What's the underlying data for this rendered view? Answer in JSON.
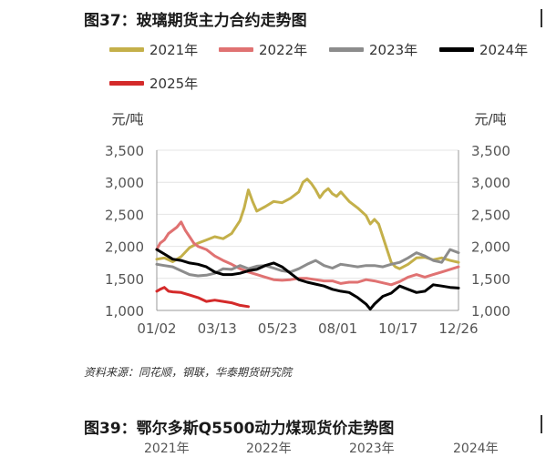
{
  "page": {
    "title": "图37：玻璃期货主力合约走势图",
    "source": "资料来源：同花顺，钢联，华泰期货研究院",
    "next_title": "图39：鄂尔多斯Q5500动力煤现货价走势图",
    "next_legend": [
      "2021年",
      "2022年",
      "2023年",
      "2024年"
    ]
  },
  "chart_data": {
    "type": "line",
    "title": "",
    "ylabel_left": "元/吨",
    "ylabel_right": "元/吨",
    "ylim": [
      1000,
      3500
    ],
    "yticks": [
      "1,000",
      "1,500",
      "2,000",
      "2,500",
      "3,000",
      "3,500"
    ],
    "xticks": [
      "01/02",
      "03/13",
      "05/23",
      "08/01",
      "10/17",
      "12/26"
    ],
    "x_day_range": [
      1,
      360
    ],
    "legend_position": "top",
    "series": [
      {
        "name": "2021年",
        "color": "#c4b04a",
        "points": [
          [
            1,
            1800
          ],
          [
            10,
            1820
          ],
          [
            20,
            1760
          ],
          [
            30,
            1840
          ],
          [
            40,
            1980
          ],
          [
            50,
            2050
          ],
          [
            60,
            2100
          ],
          [
            70,
            2150
          ],
          [
            80,
            2120
          ],
          [
            90,
            2200
          ],
          [
            100,
            2400
          ],
          [
            105,
            2600
          ],
          [
            110,
            2880
          ],
          [
            115,
            2700
          ],
          [
            120,
            2550
          ],
          [
            130,
            2620
          ],
          [
            140,
            2700
          ],
          [
            150,
            2680
          ],
          [
            160,
            2750
          ],
          [
            170,
            2850
          ],
          [
            175,
            3000
          ],
          [
            180,
            3050
          ],
          [
            185,
            2980
          ],
          [
            190,
            2880
          ],
          [
            195,
            2760
          ],
          [
            200,
            2850
          ],
          [
            205,
            2900
          ],
          [
            210,
            2820
          ],
          [
            215,
            2780
          ],
          [
            220,
            2850
          ],
          [
            230,
            2700
          ],
          [
            240,
            2600
          ],
          [
            250,
            2480
          ],
          [
            255,
            2350
          ],
          [
            260,
            2420
          ],
          [
            265,
            2350
          ],
          [
            270,
            2150
          ],
          [
            275,
            1950
          ],
          [
            280,
            1750
          ],
          [
            285,
            1680
          ],
          [
            290,
            1650
          ],
          [
            300,
            1720
          ],
          [
            310,
            1820
          ],
          [
            320,
            1830
          ],
          [
            330,
            1790
          ],
          [
            340,
            1820
          ],
          [
            350,
            1780
          ],
          [
            360,
            1750
          ]
        ]
      },
      {
        "name": "2022年",
        "color": "#e07272",
        "points": [
          [
            1,
            1950
          ],
          [
            5,
            2050
          ],
          [
            10,
            2100
          ],
          [
            15,
            2200
          ],
          [
            20,
            2250
          ],
          [
            25,
            2300
          ],
          [
            30,
            2380
          ],
          [
            35,
            2250
          ],
          [
            40,
            2150
          ],
          [
            45,
            2050
          ],
          [
            50,
            2000
          ],
          [
            60,
            1950
          ],
          [
            70,
            1850
          ],
          [
            80,
            1780
          ],
          [
            90,
            1720
          ],
          [
            100,
            1650
          ],
          [
            110,
            1600
          ],
          [
            120,
            1560
          ],
          [
            130,
            1520
          ],
          [
            140,
            1480
          ],
          [
            150,
            1470
          ],
          [
            160,
            1480
          ],
          [
            170,
            1500
          ],
          [
            180,
            1500
          ],
          [
            190,
            1480
          ],
          [
            200,
            1460
          ],
          [
            210,
            1460
          ],
          [
            220,
            1420
          ],
          [
            230,
            1440
          ],
          [
            240,
            1440
          ],
          [
            250,
            1480
          ],
          [
            260,
            1460
          ],
          [
            270,
            1430
          ],
          [
            280,
            1400
          ],
          [
            290,
            1450
          ],
          [
            300,
            1520
          ],
          [
            310,
            1560
          ],
          [
            320,
            1520
          ],
          [
            330,
            1560
          ],
          [
            340,
            1600
          ],
          [
            350,
            1640
          ],
          [
            360,
            1680
          ]
        ]
      },
      {
        "name": "2023年",
        "color": "#8c8c8c",
        "points": [
          [
            1,
            1720
          ],
          [
            10,
            1700
          ],
          [
            20,
            1680
          ],
          [
            30,
            1620
          ],
          [
            40,
            1560
          ],
          [
            50,
            1540
          ],
          [
            60,
            1550
          ],
          [
            70,
            1580
          ],
          [
            80,
            1650
          ],
          [
            90,
            1640
          ],
          [
            100,
            1700
          ],
          [
            110,
            1650
          ],
          [
            120,
            1690
          ],
          [
            130,
            1700
          ],
          [
            140,
            1660
          ],
          [
            150,
            1620
          ],
          [
            160,
            1600
          ],
          [
            170,
            1650
          ],
          [
            180,
            1720
          ],
          [
            190,
            1780
          ],
          [
            200,
            1700
          ],
          [
            210,
            1660
          ],
          [
            220,
            1720
          ],
          [
            230,
            1700
          ],
          [
            240,
            1680
          ],
          [
            250,
            1700
          ],
          [
            260,
            1700
          ],
          [
            270,
            1680
          ],
          [
            280,
            1720
          ],
          [
            290,
            1750
          ],
          [
            300,
            1820
          ],
          [
            310,
            1900
          ],
          [
            320,
            1850
          ],
          [
            330,
            1780
          ],
          [
            340,
            1750
          ],
          [
            350,
            1950
          ],
          [
            360,
            1900
          ]
        ]
      },
      {
        "name": "2024年",
        "color": "#000000",
        "points": [
          [
            1,
            1950
          ],
          [
            10,
            1880
          ],
          [
            20,
            1800
          ],
          [
            30,
            1780
          ],
          [
            40,
            1740
          ],
          [
            50,
            1720
          ],
          [
            60,
            1680
          ],
          [
            70,
            1600
          ],
          [
            80,
            1560
          ],
          [
            90,
            1560
          ],
          [
            100,
            1580
          ],
          [
            110,
            1620
          ],
          [
            120,
            1640
          ],
          [
            130,
            1700
          ],
          [
            140,
            1740
          ],
          [
            150,
            1680
          ],
          [
            160,
            1580
          ],
          [
            170,
            1480
          ],
          [
            180,
            1440
          ],
          [
            190,
            1410
          ],
          [
            200,
            1380
          ],
          [
            210,
            1330
          ],
          [
            220,
            1300
          ],
          [
            230,
            1280
          ],
          [
            240,
            1200
          ],
          [
            250,
            1100
          ],
          [
            255,
            1020
          ],
          [
            260,
            1100
          ],
          [
            270,
            1220
          ],
          [
            280,
            1270
          ],
          [
            290,
            1380
          ],
          [
            300,
            1330
          ],
          [
            310,
            1280
          ],
          [
            320,
            1300
          ],
          [
            330,
            1400
          ],
          [
            340,
            1380
          ],
          [
            350,
            1360
          ],
          [
            360,
            1350
          ]
        ]
      },
      {
        "name": "2025年",
        "color": "#d42a2a",
        "points": [
          [
            1,
            1300
          ],
          [
            5,
            1330
          ],
          [
            10,
            1360
          ],
          [
            15,
            1300
          ],
          [
            20,
            1290
          ],
          [
            30,
            1280
          ],
          [
            40,
            1240
          ],
          [
            50,
            1200
          ],
          [
            60,
            1140
          ],
          [
            70,
            1160
          ],
          [
            80,
            1140
          ],
          [
            90,
            1120
          ],
          [
            100,
            1080
          ],
          [
            110,
            1060
          ]
        ]
      }
    ]
  }
}
